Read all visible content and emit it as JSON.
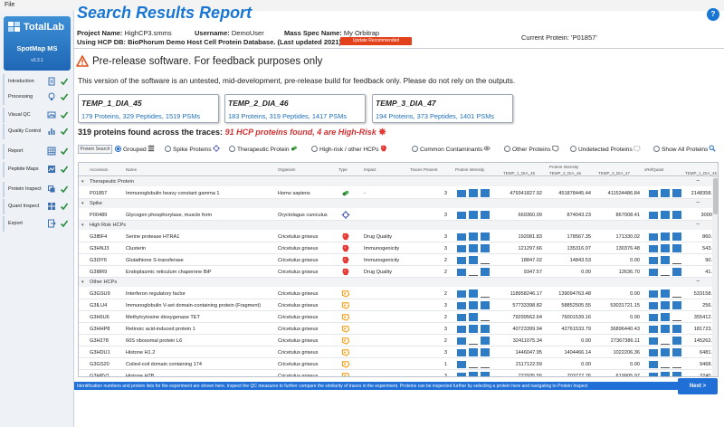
{
  "menubar": {
    "file": "File"
  },
  "app": {
    "logo_text": "TotalLab",
    "name": "SpotMap MS",
    "version": "v0.3.1"
  },
  "sidebar": {
    "items": [
      {
        "label": "Introduction",
        "icon": "document-icon",
        "done": true
      },
      {
        "label": "Processing",
        "icon": "lightbulb-icon",
        "done": true
      },
      {
        "label": "Visual QC",
        "icon": "image-icon",
        "done": true
      },
      {
        "label": "Quality Control",
        "icon": "bar-chart-icon",
        "done": true
      },
      {
        "label": "Report",
        "icon": "table-icon",
        "done": true
      },
      {
        "label": "Peptide Maps",
        "icon": "peptide-map-icon",
        "done": true
      },
      {
        "label": "Protein Inspect",
        "icon": "layers-icon",
        "done": true
      },
      {
        "label": "Quant Inspect",
        "icon": "grid-icon",
        "done": true
      },
      {
        "label": "Export",
        "icon": "export-icon",
        "done": true
      }
    ]
  },
  "header": {
    "title": "Search Results Report",
    "help_label": "?",
    "project_label": "Project Name:",
    "project_value": "HighCP3.smms",
    "user_label": "Username:",
    "user_value": "DemoUser",
    "spec_label": "Mass Spec Name:",
    "spec_value": "My Orbitrap",
    "db_text": "Using HCP DB: BioPhorum Demo Host Cell Protein Database. (Last updated 2021)",
    "update_label": "Update Recommended",
    "current_protein": "Current Protein: 'P01857'"
  },
  "prerelease": {
    "heading": "Pre-release software. For feedback purposes only",
    "text": "This version of the software is an untested, mid-development, pre-release build for feedback only. Please do not rely on the outputs."
  },
  "traces": [
    {
      "name": "TEMP_1_DIA_45",
      "stats": "179 Proteins, 329 Peptides, 1519 PSMs"
    },
    {
      "name": "TEMP_2_DIA_46",
      "stats": "183 Proteins, 319 Peptides, 1417 PSMs"
    },
    {
      "name": "TEMP_3_DIA_47",
      "stats": "194 Proteins, 373 Peptides, 1401 PSMs"
    }
  ],
  "summary": {
    "main": "319 proteins found across the traces:",
    "highlight": "91 HCP proteins found, 4 are High-Risk"
  },
  "filters": {
    "search_button": "Protein Search",
    "options": [
      {
        "label": "Grouped",
        "selected": true,
        "icon": "grouped-icon"
      },
      {
        "label": "Spike Proteins",
        "selected": false,
        "icon": "spike-icon"
      },
      {
        "label": "Therapeutic Protein",
        "selected": false,
        "icon": "therapeutic-icon"
      },
      {
        "label": "High-risk / other HCPs",
        "selected": false,
        "icon": "high-risk-icon"
      },
      {
        "label": "Common Contaminants",
        "selected": false,
        "icon": "contaminant-icon"
      },
      {
        "label": "Other Proteins",
        "selected": false,
        "icon": "other-protein-icon"
      },
      {
        "label": "Undetected Proteins",
        "selected": false,
        "icon": "undetected-icon"
      },
      {
        "label": "Show All Proteins",
        "selected": false,
        "icon": "search-icon"
      }
    ]
  },
  "table": {
    "columns": {
      "accession": "Accession",
      "name": "Name",
      "organism": "Organism",
      "type": "Type",
      "impact": "Impact",
      "traces": "Traces Present",
      "intensity": "Protein Intensity",
      "t1": "TEMP_1_DIA_45",
      "t2_top": "Protein Intensity",
      "t2": "TEMP_2_DIA_46",
      "t3": "TEMP_3_DIA_47",
      "xic": "xRefQuant",
      "t1b": "TEMP_1_DIA_45"
    },
    "groups": [
      {
        "title": "Therapeutic Protein",
        "rows": [
          {
            "acc": "P01857",
            "name": "Immunoglobulin heavy constant gamma 1",
            "org": "Homo sapiens",
            "type": "therapeutic",
            "impact": "-",
            "traces": "3",
            "bars": [
              0.9,
              0.95,
              0.95
            ],
            "v1": "479341827.92",
            "v2": "451878445.44",
            "v3": "411534486.84",
            "v4": "2148358.",
            "xbars": [
              0.9,
              0.95,
              0.95
            ]
          }
        ]
      },
      {
        "title": "Spike",
        "rows": [
          {
            "acc": "P00489",
            "name": "Glycogen phosphorylase, muscle form",
            "org": "Oryctolagus cuniculus",
            "type": "spike",
            "impact": "",
            "traces": "3",
            "bars": [
              0.9,
              0.95,
              0.95
            ],
            "v1": "669360.09",
            "v2": "874043.23",
            "v3": "867008.41",
            "v4": "3000",
            "xbars": [
              0.9,
              0.95,
              0.95
            ]
          }
        ]
      },
      {
        "title": "High Risk HCPs",
        "rows": [
          {
            "acc": "G3IBF4",
            "name": "Serine protease HTRA1",
            "org": "Cricetulus griseus",
            "type": "high-risk",
            "impact": "Drug Quality",
            "traces": "3",
            "bars": [
              0.9,
              0.95,
              0.95
            ],
            "v1": "192081.83",
            "v2": "178567.35",
            "v3": "171330.02",
            "v4": "860.",
            "xbars": [
              0.9,
              0.95,
              0.95
            ]
          },
          {
            "acc": "G3HNJ3",
            "name": "Clusterin",
            "org": "Cricetulus griseus",
            "type": "high-risk",
            "impact": "Immunogenicity",
            "traces": "3",
            "bars": [
              0.9,
              0.95,
              0.95
            ],
            "v1": "121297.66",
            "v2": "135316.07",
            "v3": "130376.48",
            "v4": "543.",
            "xbars": [
              0.9,
              0.95,
              0.95
            ]
          },
          {
            "acc": "G3I3Y6",
            "name": "Glutathione S-transferase",
            "org": "Cricetulus griseus",
            "type": "high-risk",
            "impact": "Immunogenicity",
            "traces": "2",
            "bars": [
              0.9,
              0.95,
              0
            ],
            "v1": "18847.02",
            "v2": "14843.53",
            "v3": "0.00",
            "v4": "90.",
            "xbars": [
              0.9,
              0.95,
              0
            ]
          },
          {
            "acc": "G3I8R9",
            "name": "Endoplasmic reticulum chaperone BiP",
            "org": "Cricetulus griseus",
            "type": "high-risk",
            "impact": "Drug Quality",
            "traces": "2",
            "bars": [
              0.9,
              0,
              0.95
            ],
            "v1": "9347.57",
            "v2": "0.00",
            "v3": "12636.70",
            "v4": "41.",
            "xbars": [
              0.9,
              0,
              0.95
            ]
          }
        ]
      },
      {
        "title": "Other HCPs",
        "rows": [
          {
            "acc": "G3GSU9",
            "name": "Interferon regulatory factor",
            "org": "Cricetulus griseus",
            "type": "other-hcp",
            "impact": "",
            "traces": "2",
            "bars": [
              0.9,
              0.95,
              0
            ],
            "v1": "118958246.17",
            "v2": "139094763.48",
            "v3": "0.00",
            "v4": "533158.",
            "xbars": [
              0.9,
              0.95,
              0
            ]
          },
          {
            "acc": "G3ILU4",
            "name": "Immunoglobulin V-set domain-containing protein (Fragment)",
            "org": "Cricetulus griseus",
            "type": "other-hcp",
            "impact": "",
            "traces": "3",
            "bars": [
              0.9,
              0.95,
              0.95
            ],
            "v1": "57733398.82",
            "v2": "58852505.55",
            "v3": "53031721.15",
            "v4": "256.",
            "xbars": [
              0.9,
              0.95,
              0.95
            ]
          },
          {
            "acc": "G3H6U6",
            "name": "Methylcytosine dioxygenase TET",
            "org": "Cricetulus griseus",
            "type": "other-hcp",
            "impact": "",
            "traces": "2",
            "bars": [
              0.9,
              0.95,
              0
            ],
            "v1": "79299562.64",
            "v2": "76001539.16",
            "v3": "0.00",
            "v4": "355412.",
            "xbars": [
              0.9,
              0.95,
              0
            ]
          },
          {
            "acc": "G3HHP8",
            "name": "Retinoic acid-induced protein 1",
            "org": "Cricetulus griseus",
            "type": "other-hcp",
            "impact": "",
            "traces": "3",
            "bars": [
              0.9,
              0.95,
              0.95
            ],
            "v1": "40723399.94",
            "v2": "42761533.79",
            "v3": "36896440.43",
            "v4": "181723.",
            "xbars": [
              0.9,
              0.95,
              0.95
            ]
          },
          {
            "acc": "G3H278",
            "name": "60S ribosomal protein L6",
            "org": "Cricetulus griseus",
            "type": "other-hcp",
            "impact": "",
            "traces": "2",
            "bars": [
              0.9,
              0,
              0.95
            ],
            "v1": "32411075.34",
            "v2": "0.00",
            "v3": "27367386.11",
            "v4": "145262.",
            "xbars": [
              0.9,
              0,
              0.95
            ]
          },
          {
            "acc": "G3HDU1",
            "name": "Histone H1.2",
            "org": "Cricetulus griseus",
            "type": "other-hcp",
            "impact": "",
            "traces": "3",
            "bars": [
              0.9,
              0.95,
              0.95
            ],
            "v1": "1446047.95",
            "v2": "1404466.14",
            "v3": "1022206.36",
            "v4": "6481.",
            "xbars": [
              0.9,
              0.95,
              0.95
            ]
          },
          {
            "acc": "G3GS20",
            "name": "Coiled-coil domain containing 174",
            "org": "Cricetulus griseus",
            "type": "other-hcp",
            "impact": "",
            "traces": "1",
            "bars": [
              0.9,
              0,
              0
            ],
            "v1": "2117122.59",
            "v2": "0.00",
            "v3": "0.00",
            "v4": "9468.",
            "xbars": [
              0.9,
              0,
              0
            ]
          },
          {
            "acc": "G3HPV1",
            "name": "Histone H2B",
            "org": "Cricetulus griseus",
            "type": "other-hcp",
            "impact": "",
            "traces": "3",
            "bars": [
              0.9,
              0.95,
              0.95
            ],
            "v1": "722935.55",
            "v2": "703777.76",
            "v3": "619905.97",
            "v4": "3240.",
            "xbars": [
              0.9,
              0.95,
              0.95
            ]
          }
        ]
      }
    ]
  },
  "footer": {
    "text": "Identification numbers and protein lists for the experiment are shown here. Inspect the QC measures to further compare the similarity of traces in the experiment. Proteins can be inspected further by selecting a protein here and navigating to Protein Inspect",
    "next_label": "Next  >"
  },
  "colors": {
    "accent": "#1976d2",
    "bar": "#2f7cc6",
    "high_risk": "#d32f2f",
    "check": "#2e8b3c",
    "update": "#e3411b"
  }
}
